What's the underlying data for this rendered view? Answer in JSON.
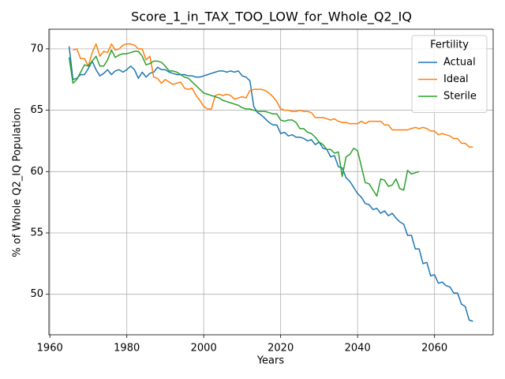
{
  "chart_data": {
    "type": "line",
    "title": "Score_1_in_TAX_TOO_LOW_for_Whole_Q2_IQ",
    "x_label": "Years",
    "y_label": "% of Whole Q2_IQ Population",
    "legend_title": "Fertility",
    "legend_position": "upper right",
    "grid": true,
    "xlim": [
      1959.75,
      2075.25
    ],
    "ylim": [
      46.7,
      71.6
    ],
    "xticks": [
      1960,
      1980,
      2000,
      2020,
      2040,
      2060
    ],
    "yticks": [
      50,
      55,
      60,
      65,
      70
    ],
    "x": [
      1965,
      1966,
      1967,
      1968,
      1969,
      1970,
      1971,
      1972,
      1973,
      1974,
      1975,
      1976,
      1977,
      1978,
      1979,
      1980,
      1981,
      1982,
      1983,
      1984,
      1985,
      1986,
      1987,
      1988,
      1989,
      1990,
      1991,
      1992,
      1993,
      1994,
      1995,
      1996,
      1997,
      1998,
      1999,
      2000,
      2001,
      2002,
      2003,
      2004,
      2005,
      2006,
      2007,
      2008,
      2009,
      2010,
      2011,
      2012,
      2013,
      2014,
      2015,
      2016,
      2017,
      2018,
      2019,
      2020,
      2021,
      2022,
      2023,
      2024,
      2025,
      2026,
      2027,
      2028,
      2029,
      2030,
      2031,
      2032,
      2033,
      2034,
      2035,
      2036,
      2037,
      2038,
      2039,
      2040,
      2041,
      2042,
      2043,
      2044,
      2045,
      2046,
      2047,
      2048,
      2049,
      2050,
      2051,
      2052,
      2053,
      2054,
      2055,
      2056,
      2057,
      2058,
      2059,
      2060,
      2061,
      2062,
      2063,
      2064,
      2065,
      2066,
      2067,
      2068,
      2069,
      2070
    ],
    "series": [
      {
        "name": "Actual",
        "color": "#1f77b4",
        "values": [
          70.2,
          67.5,
          67.6,
          67.9,
          67.9,
          68.4,
          69.0,
          68.3,
          67.8,
          68.0,
          68.3,
          67.9,
          68.2,
          68.3,
          68.1,
          68.3,
          68.6,
          68.3,
          67.6,
          68.1,
          67.7,
          68.0,
          68.1,
          68.5,
          68.3,
          68.3,
          68.1,
          68.0,
          67.9,
          67.9,
          67.9,
          67.8,
          67.8,
          67.7,
          67.7,
          67.8,
          67.9,
          68.0,
          68.1,
          68.2,
          68.2,
          68.1,
          68.2,
          68.1,
          68.2,
          67.8,
          67.7,
          67.4,
          65.3,
          64.8,
          64.6,
          64.3,
          64.0,
          63.8,
          63.8,
          63.1,
          63.2,
          62.9,
          63.0,
          62.8,
          62.8,
          62.7,
          62.5,
          62.6,
          62.2,
          62.4,
          61.9,
          61.8,
          61.2,
          61.3,
          60.4,
          60.3,
          59.5,
          59.2,
          58.7,
          58.2,
          57.9,
          57.4,
          57.3,
          56.9,
          57.0,
          56.6,
          56.8,
          56.4,
          56.6,
          56.2,
          55.9,
          55.7,
          54.8,
          54.8,
          53.7,
          53.7,
          52.5,
          52.6,
          51.5,
          51.6,
          50.9,
          51.0,
          50.7,
          50.6,
          50.1,
          50.1,
          49.2,
          49.0,
          47.9,
          47.8
        ]
      },
      {
        "name": "Ideal",
        "color": "#ff7f0e",
        "values": [
          null,
          69.9,
          70.0,
          69.2,
          69.2,
          68.6,
          69.7,
          70.4,
          69.4,
          69.8,
          69.7,
          70.4,
          69.9,
          70.0,
          70.3,
          70.4,
          70.4,
          70.3,
          70.0,
          70.0,
          69.1,
          69.4,
          67.7,
          67.6,
          67.2,
          67.5,
          67.3,
          67.1,
          67.2,
          67.3,
          66.8,
          66.7,
          66.8,
          66.2,
          65.8,
          65.3,
          65.1,
          65.1,
          66.2,
          66.3,
          66.2,
          66.3,
          66.2,
          65.9,
          66.0,
          66.1,
          66.0,
          66.6,
          66.7,
          66.7,
          66.7,
          66.6,
          66.4,
          66.1,
          65.7,
          65.1,
          65.0,
          65.0,
          64.9,
          64.9,
          65.0,
          64.9,
          64.9,
          64.8,
          64.4,
          64.4,
          64.4,
          64.3,
          64.2,
          64.3,
          64.1,
          64.0,
          64.0,
          63.9,
          63.9,
          63.9,
          64.1,
          63.9,
          64.1,
          64.1,
          64.1,
          64.1,
          63.8,
          63.8,
          63.4,
          63.4,
          63.4,
          63.4,
          63.4,
          63.5,
          63.6,
          63.5,
          63.6,
          63.5,
          63.3,
          63.3,
          63.0,
          63.1,
          63.0,
          62.9,
          62.7,
          62.7,
          62.3,
          62.3,
          62.0,
          62.0
        ]
      },
      {
        "name": "Sterile",
        "color": "#2ca02c",
        "values": [
          69.3,
          67.2,
          67.5,
          68.1,
          68.7,
          68.6,
          69.0,
          69.4,
          68.6,
          68.6,
          69.1,
          69.9,
          69.3,
          69.5,
          69.6,
          69.6,
          69.7,
          69.8,
          69.8,
          69.4,
          68.7,
          68.8,
          69.0,
          69.0,
          68.9,
          68.6,
          68.2,
          68.2,
          68.1,
          67.9,
          67.7,
          67.6,
          67.3,
          67.0,
          66.7,
          66.4,
          66.3,
          66.2,
          66.1,
          66.0,
          65.8,
          65.7,
          65.6,
          65.5,
          65.4,
          65.2,
          65.1,
          65.1,
          65.0,
          64.9,
          64.9,
          64.9,
          64.8,
          64.7,
          64.7,
          64.2,
          64.1,
          64.2,
          64.2,
          64.0,
          63.5,
          63.5,
          63.2,
          63.1,
          62.8,
          62.4,
          62.2,
          61.8,
          61.8,
          61.5,
          61.6,
          59.6,
          61.2,
          61.4,
          61.9,
          61.7,
          60.4,
          59.1,
          59.0,
          58.5,
          58.0,
          59.4,
          59.3,
          58.8,
          58.9,
          59.4,
          58.6,
          58.5,
          60.1,
          59.8,
          59.9,
          60.0,
          null,
          null,
          null,
          null,
          null,
          null,
          null,
          null,
          null,
          null,
          null,
          null,
          null,
          null
        ]
      }
    ]
  }
}
